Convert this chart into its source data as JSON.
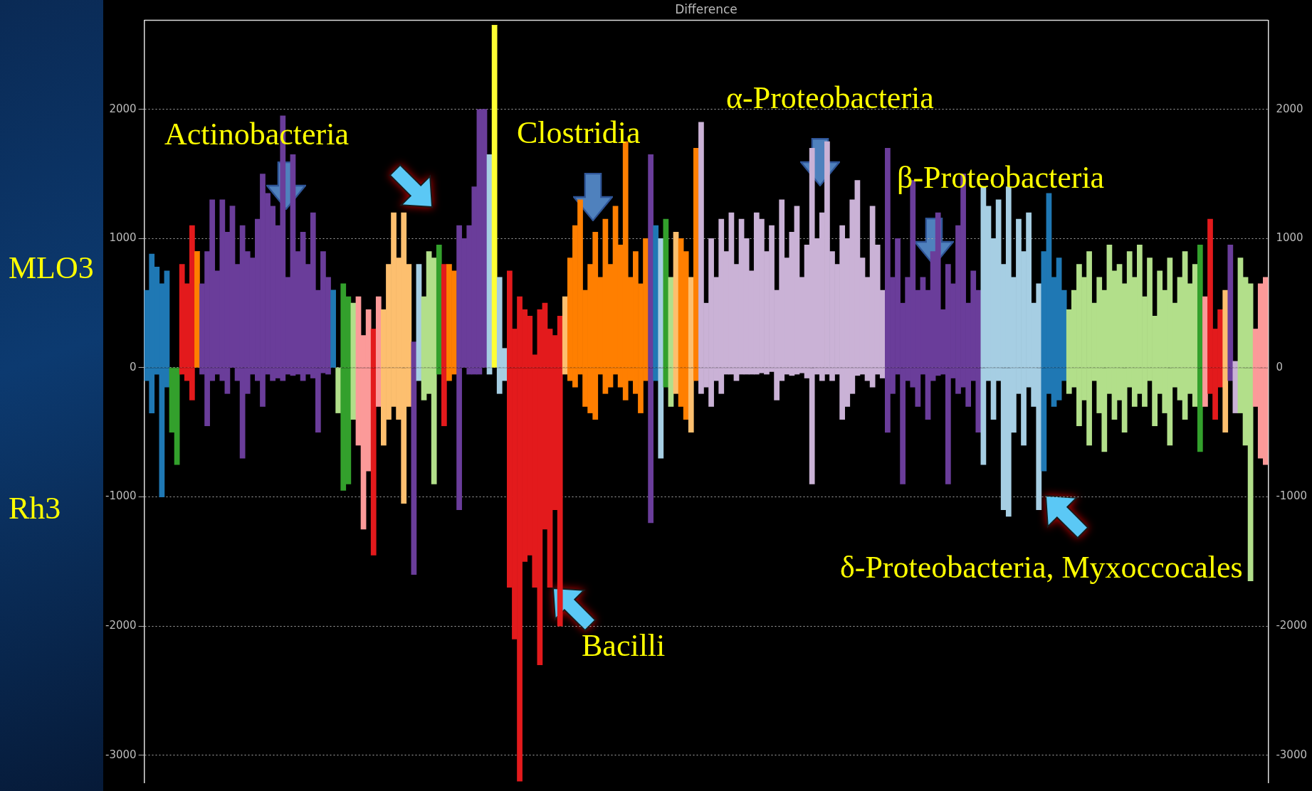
{
  "chart_data": {
    "type": "bar",
    "title": "Difference",
    "stacked": true,
    "grid": "y",
    "legend": false,
    "tick_labels": "y",
    "categories": [
      null,
      null,
      null,
      null,
      null,
      null,
      null,
      null,
      null,
      null,
      null,
      null,
      null,
      null,
      null,
      null,
      null,
      null,
      null,
      null,
      null,
      null,
      null,
      null,
      null,
      null,
      null,
      null,
      null,
      null,
      null,
      null,
      null,
      null,
      null,
      null,
      null,
      null,
      null,
      null,
      null,
      null,
      null,
      null,
      null,
      null,
      null,
      null,
      null,
      null,
      null,
      null,
      null,
      null,
      null,
      null,
      null,
      null,
      null,
      null,
      null,
      null,
      null,
      null,
      null,
      null,
      null,
      null,
      null,
      null,
      null,
      null,
      null,
      null,
      null,
      null,
      null,
      null,
      null,
      null,
      null,
      null,
      null,
      null,
      null,
      null,
      null,
      null,
      null,
      null,
      null,
      null,
      null,
      null,
      null,
      null,
      null,
      null,
      null,
      null,
      null,
      null,
      null,
      null,
      null,
      null,
      null,
      null,
      null,
      null,
      null,
      null,
      null,
      null,
      null,
      null,
      null,
      null,
      null,
      null,
      null,
      null,
      null,
      null,
      null,
      null,
      null,
      null,
      null,
      null,
      null,
      null,
      null,
      null,
      null,
      null,
      null,
      null,
      null,
      null,
      null,
      null,
      null,
      null,
      null,
      null,
      null,
      null,
      null,
      null,
      null,
      null,
      null,
      null,
      null,
      null,
      null,
      null,
      null,
      null,
      null,
      null,
      null,
      null,
      null,
      null,
      null,
      null,
      null,
      null,
      null,
      null,
      null,
      null,
      null,
      null,
      null,
      null,
      null,
      null,
      null,
      null,
      null,
      null,
      null,
      null,
      null,
      null,
      null,
      null,
      null,
      null,
      null,
      null,
      null,
      null,
      null,
      null,
      null,
      null,
      null,
      null,
      null,
      null,
      null,
      null,
      null,
      null,
      null,
      null,
      null,
      null,
      null,
      null,
      null,
      null,
      null,
      null,
      null,
      null,
      null,
      null,
      null
    ],
    "ylim": [
      -3210,
      2690
    ],
    "yticks": [
      -3000,
      -2000,
      -1000,
      0,
      1000,
      2000
    ],
    "y2lim": [
      -3210,
      2690
    ],
    "y2ticks": [
      -3000,
      -2000,
      -1000,
      0,
      1000,
      2000
    ],
    "annotations": [
      "MLO3",
      "Rh3",
      "Actinobacteria",
      "Clostridia",
      "α-Proteobacteria",
      "β-Proteobacteria",
      "δ-Proteobacteria, Myxoccocales",
      "Bacilli"
    ],
    "series": [
      {
        "values": [
          600,
          880,
          780,
          650,
          750,
          0,
          0,
          800,
          650,
          1100,
          900,
          650,
          900,
          1300,
          750,
          1300,
          1050,
          1250,
          800,
          1100,
          900,
          850,
          1150,
          1500,
          1350,
          1250,
          1100,
          1950,
          700,
          1650,
          900,
          1050,
          800,
          1200,
          600,
          900,
          700,
          600,
          0,
          650,
          550,
          500,
          550,
          250,
          450,
          300,
          550,
          450,
          800,
          1200,
          850,
          1200,
          800,
          200,
          800,
          550,
          900,
          850,
          950,
          800,
          800,
          750,
          1100,
          1000,
          1100,
          1400,
          2000,
          2000,
          1650,
          2650,
          700,
          150,
          750,
          300,
          550,
          450,
          400,
          100,
          450,
          500,
          300,
          250,
          400,
          550,
          850,
          1100,
          1300,
          600,
          800,
          1050,
          700,
          1150,
          800,
          1250,
          950,
          1750,
          700,
          900,
          650,
          1000,
          1650,
          1100,
          1000,
          1150,
          700,
          1050,
          1000,
          900,
          700,
          1700,
          1900,
          500,
          1000,
          700,
          1150,
          900,
          1200,
          800,
          1150,
          1000,
          750,
          1200,
          1150,
          900,
          1100,
          600,
          1300,
          850,
          1050,
          1250,
          700,
          950,
          1700,
          1000,
          1200,
          1750,
          900,
          800,
          1100,
          1000,
          1300,
          1450,
          850,
          700,
          1250,
          950,
          600,
          1700,
          700,
          1000,
          500,
          700,
          1450,
          600,
          700,
          600,
          900,
          1200,
          450,
          800,
          650,
          1100,
          1500,
          500,
          750,
          600,
          1400,
          1250,
          1000,
          1300,
          800,
          1400,
          700,
          1150,
          900,
          1200,
          500,
          650,
          900,
          1350,
          700,
          850,
          600,
          450,
          600,
          800,
          700,
          900,
          500,
          700,
          600,
          950,
          750,
          800,
          650,
          900,
          700,
          950,
          550,
          850,
          400,
          750,
          600,
          850,
          500,
          700,
          900,
          650,
          800,
          950,
          550,
          1150,
          300,
          450,
          600,
          950,
          50,
          850,
          700,
          650,
          300,
          650,
          700
        ],
        "colors": [
          "#1f78b4",
          "#1f78b4",
          "#1f78b4",
          "#1f78b4",
          "#1f78b4",
          "#33a02c",
          "#33a02c",
          "#e31a1c",
          "#e31a1c",
          "#e31a1c",
          "#ff7f00",
          "#6a3d9a",
          "#6a3d9a",
          "#6a3d9a",
          "#6a3d9a",
          "#6a3d9a",
          "#6a3d9a",
          "#6a3d9a",
          "#6a3d9a",
          "#6a3d9a",
          "#6a3d9a",
          "#6a3d9a",
          "#6a3d9a",
          "#6a3d9a",
          "#6a3d9a",
          "#6a3d9a",
          "#6a3d9a",
          "#6a3d9a",
          "#6a3d9a",
          "#6a3d9a",
          "#6a3d9a",
          "#6a3d9a",
          "#6a3d9a",
          "#6a3d9a",
          "#6a3d9a",
          "#6a3d9a",
          "#6a3d9a",
          "#1f78b4",
          "#b2df8a",
          "#33a02c",
          "#33a02c",
          "#b2df8a",
          "#fb9a99",
          "#fb9a99",
          "#fb9a99",
          "#e31a1c",
          "#fb9a99",
          "#fdbf6f",
          "#fdbf6f",
          "#fdbf6f",
          "#fdbf6f",
          "#fdbf6f",
          "#fdbf6f",
          "#6a3d9a",
          "#a6cee3",
          "#b2df8a",
          "#b2df8a",
          "#b2df8a",
          "#33a02c",
          "#e31a1c",
          "#ff7f00",
          "#ff7f00",
          "#6a3d9a",
          "#6a3d9a",
          "#6a3d9a",
          "#6a3d9a",
          "#6a3d9a",
          "#6a3d9a",
          "#a6cee3",
          "#ffff33",
          "#a6cee3",
          "#a6cee3",
          "#e31a1c",
          "#e31a1c",
          "#e31a1c",
          "#e31a1c",
          "#e31a1c",
          "#e31a1c",
          "#e31a1c",
          "#e31a1c",
          "#e31a1c",
          "#e31a1c",
          "#e31a1c",
          "#fdbf6f",
          "#ff7f00",
          "#ff7f00",
          "#ff7f00",
          "#ff7f00",
          "#ff7f00",
          "#ff7f00",
          "#ff7f00",
          "#ff7f00",
          "#ff7f00",
          "#ff7f00",
          "#ff7f00",
          "#ff7f00",
          "#ff7f00",
          "#ff7f00",
          "#ff7f00",
          "#ff7f00",
          "#6a3d9a",
          "#1f78b4",
          "#a6cee3",
          "#33a02c",
          "#b2df8a",
          "#fdbf6f",
          "#ff7f00",
          "#ff7f00",
          "#fdbf6f",
          "#ff7f00",
          "#cab2d6",
          "#cab2d6",
          "#cab2d6",
          "#cab2d6",
          "#cab2d6",
          "#cab2d6",
          "#cab2d6",
          "#cab2d6",
          "#cab2d6",
          "#cab2d6",
          "#cab2d6",
          "#cab2d6",
          "#cab2d6",
          "#cab2d6",
          "#cab2d6",
          "#cab2d6",
          "#cab2d6",
          "#cab2d6",
          "#cab2d6",
          "#cab2d6",
          "#cab2d6",
          "#cab2d6",
          "#cab2d6",
          "#cab2d6",
          "#cab2d6",
          "#cab2d6",
          "#cab2d6",
          "#cab2d6",
          "#cab2d6",
          "#cab2d6",
          "#cab2d6",
          "#cab2d6",
          "#cab2d6",
          "#cab2d6",
          "#cab2d6",
          "#cab2d6",
          "#cab2d6",
          "#6a3d9a",
          "#6a3d9a",
          "#6a3d9a",
          "#6a3d9a",
          "#6a3d9a",
          "#6a3d9a",
          "#6a3d9a",
          "#6a3d9a",
          "#6a3d9a",
          "#6a3d9a",
          "#6a3d9a",
          "#6a3d9a",
          "#6a3d9a",
          "#6a3d9a",
          "#6a3d9a",
          "#6a3d9a",
          "#6a3d9a",
          "#6a3d9a",
          "#6a3d9a",
          "#a6cee3",
          "#a6cee3",
          "#a6cee3",
          "#a6cee3",
          "#a6cee3",
          "#a6cee3",
          "#a6cee3",
          "#a6cee3",
          "#a6cee3",
          "#a6cee3",
          "#a6cee3",
          "#a6cee3",
          "#1f78b4",
          "#1f78b4",
          "#1f78b4",
          "#1f78b4",
          "#1f78b4",
          "#b2df8a",
          "#b2df8a",
          "#b2df8a",
          "#b2df8a",
          "#b2df8a",
          "#b2df8a",
          "#b2df8a",
          "#b2df8a",
          "#b2df8a",
          "#b2df8a",
          "#b2df8a",
          "#b2df8a",
          "#b2df8a",
          "#b2df8a",
          "#b2df8a",
          "#b2df8a",
          "#b2df8a",
          "#b2df8a",
          "#b2df8a",
          "#b2df8a",
          "#b2df8a",
          "#b2df8a",
          "#b2df8a",
          "#b2df8a",
          "#b2df8a",
          "#b2df8a",
          "#33a02c",
          "#fb9a99",
          "#e31a1c",
          "#e31a1c",
          "#e31a1c",
          "#fdbf6f",
          "#6a3d9a",
          "#cab2d6",
          "#b2df8a",
          "#b2df8a",
          "#b2df8a",
          "#fb9a99",
          "#fb9a99",
          "#fb9a99"
        ]
      },
      {
        "values": [
          -100,
          -350,
          -50,
          -1000,
          -150,
          -500,
          -750,
          -50,
          -100,
          -250,
          0,
          -50,
          -450,
          -100,
          -50,
          -100,
          -200,
          0,
          -100,
          -700,
          -200,
          -50,
          -100,
          -300,
          -50,
          -100,
          -80,
          -100,
          -50,
          -60,
          -50,
          -100,
          -50,
          -80,
          -500,
          -40,
          -50,
          0,
          -350,
          -950,
          -900,
          -400,
          -600,
          -1250,
          -800,
          -1450,
          -300,
          -600,
          -400,
          -300,
          -400,
          -1050,
          -300,
          -1600,
          -100,
          -250,
          -200,
          -900,
          -50,
          -450,
          -100,
          -50,
          -1100,
          0,
          -50,
          -50,
          -50,
          0,
          -50,
          0,
          -200,
          -100,
          -1700,
          -2100,
          -3200,
          -1500,
          -1450,
          -1700,
          -2300,
          -1250,
          -1700,
          -1100,
          -2000,
          -50,
          -100,
          -150,
          -50,
          -300,
          -350,
          -400,
          -50,
          -200,
          -150,
          -50,
          -150,
          -250,
          -100,
          -200,
          -350,
          -100,
          -1200,
          -100,
          -700,
          -150,
          -300,
          -200,
          -300,
          -400,
          -500,
          -100,
          -200,
          -150,
          -300,
          -100,
          -200,
          -50,
          -50,
          -100,
          -50,
          -50,
          -50,
          -50,
          -40,
          -50,
          -30,
          -250,
          -100,
          -50,
          -60,
          -50,
          -40,
          -80,
          -900,
          -50,
          -100,
          -50,
          -100,
          -50,
          -400,
          -300,
          -200,
          -60,
          -50,
          -100,
          -150,
          -50,
          -80,
          -500,
          -200,
          -50,
          -900,
          -100,
          -150,
          -300,
          -50,
          -400,
          -100,
          -60,
          -50,
          -900,
          -80,
          -200,
          -150,
          -300,
          -100,
          -500,
          -750,
          -100,
          -400,
          -100,
          -1100,
          -1150,
          -500,
          -200,
          -600,
          -150,
          -300,
          -1100,
          -800,
          -200,
          -300,
          -250,
          -100,
          -200,
          -150,
          -450,
          -250,
          -600,
          -100,
          -350,
          -650,
          -200,
          -400,
          -250,
          -500,
          -150,
          -300,
          -200,
          -300,
          -100,
          -450,
          -200,
          -350,
          -600,
          -150,
          -250,
          -400,
          -200,
          -300,
          -650,
          -300,
          -200,
          -400,
          -150,
          -500,
          -100,
          -350,
          -350,
          -600,
          -1650,
          -300,
          -700,
          -750
        ],
        "colors": [
          "#1f78b4",
          "#1f78b4",
          "#1f78b4",
          "#1f78b4",
          "#1f78b4",
          "#33a02c",
          "#33a02c",
          "#e31a1c",
          "#e31a1c",
          "#e31a1c",
          "#ff7f00",
          "#6a3d9a",
          "#6a3d9a",
          "#6a3d9a",
          "#6a3d9a",
          "#6a3d9a",
          "#6a3d9a",
          "#6a3d9a",
          "#6a3d9a",
          "#6a3d9a",
          "#6a3d9a",
          "#6a3d9a",
          "#6a3d9a",
          "#6a3d9a",
          "#6a3d9a",
          "#6a3d9a",
          "#6a3d9a",
          "#6a3d9a",
          "#6a3d9a",
          "#6a3d9a",
          "#6a3d9a",
          "#6a3d9a",
          "#6a3d9a",
          "#6a3d9a",
          "#6a3d9a",
          "#6a3d9a",
          "#6a3d9a",
          "#1f78b4",
          "#b2df8a",
          "#33a02c",
          "#33a02c",
          "#b2df8a",
          "#fb9a99",
          "#fb9a99",
          "#fb9a99",
          "#e31a1c",
          "#fb9a99",
          "#fdbf6f",
          "#fdbf6f",
          "#fdbf6f",
          "#fdbf6f",
          "#fdbf6f",
          "#fdbf6f",
          "#6a3d9a",
          "#a6cee3",
          "#b2df8a",
          "#b2df8a",
          "#b2df8a",
          "#33a02c",
          "#e31a1c",
          "#ff7f00",
          "#ff7f00",
          "#6a3d9a",
          "#6a3d9a",
          "#6a3d9a",
          "#6a3d9a",
          "#6a3d9a",
          "#6a3d9a",
          "#a6cee3",
          "#ffff33",
          "#a6cee3",
          "#a6cee3",
          "#e31a1c",
          "#e31a1c",
          "#e31a1c",
          "#e31a1c",
          "#e31a1c",
          "#e31a1c",
          "#e31a1c",
          "#e31a1c",
          "#e31a1c",
          "#e31a1c",
          "#e31a1c",
          "#fdbf6f",
          "#ff7f00",
          "#ff7f00",
          "#ff7f00",
          "#ff7f00",
          "#ff7f00",
          "#ff7f00",
          "#ff7f00",
          "#ff7f00",
          "#ff7f00",
          "#ff7f00",
          "#ff7f00",
          "#ff7f00",
          "#ff7f00",
          "#ff7f00",
          "#ff7f00",
          "#ff7f00",
          "#6a3d9a",
          "#1f78b4",
          "#a6cee3",
          "#33a02c",
          "#b2df8a",
          "#fdbf6f",
          "#ff7f00",
          "#ff7f00",
          "#fdbf6f",
          "#ff7f00",
          "#cab2d6",
          "#cab2d6",
          "#cab2d6",
          "#cab2d6",
          "#cab2d6",
          "#cab2d6",
          "#cab2d6",
          "#cab2d6",
          "#cab2d6",
          "#cab2d6",
          "#cab2d6",
          "#cab2d6",
          "#cab2d6",
          "#cab2d6",
          "#cab2d6",
          "#cab2d6",
          "#cab2d6",
          "#cab2d6",
          "#cab2d6",
          "#cab2d6",
          "#cab2d6",
          "#cab2d6",
          "#cab2d6",
          "#cab2d6",
          "#cab2d6",
          "#cab2d6",
          "#cab2d6",
          "#cab2d6",
          "#cab2d6",
          "#cab2d6",
          "#cab2d6",
          "#cab2d6",
          "#cab2d6",
          "#cab2d6",
          "#cab2d6",
          "#cab2d6",
          "#cab2d6",
          "#6a3d9a",
          "#6a3d9a",
          "#6a3d9a",
          "#6a3d9a",
          "#6a3d9a",
          "#6a3d9a",
          "#6a3d9a",
          "#6a3d9a",
          "#6a3d9a",
          "#6a3d9a",
          "#6a3d9a",
          "#6a3d9a",
          "#6a3d9a",
          "#6a3d9a",
          "#6a3d9a",
          "#6a3d9a",
          "#6a3d9a",
          "#6a3d9a",
          "#6a3d9a",
          "#a6cee3",
          "#a6cee3",
          "#a6cee3",
          "#a6cee3",
          "#a6cee3",
          "#a6cee3",
          "#a6cee3",
          "#a6cee3",
          "#a6cee3",
          "#a6cee3",
          "#a6cee3",
          "#a6cee3",
          "#1f78b4",
          "#1f78b4",
          "#1f78b4",
          "#1f78b4",
          "#1f78b4",
          "#b2df8a",
          "#b2df8a",
          "#b2df8a",
          "#b2df8a",
          "#b2df8a",
          "#b2df8a",
          "#b2df8a",
          "#b2df8a",
          "#b2df8a",
          "#b2df8a",
          "#b2df8a",
          "#b2df8a",
          "#b2df8a",
          "#b2df8a",
          "#b2df8a",
          "#b2df8a",
          "#b2df8a",
          "#b2df8a",
          "#b2df8a",
          "#b2df8a",
          "#b2df8a",
          "#b2df8a",
          "#b2df8a",
          "#b2df8a",
          "#b2df8a",
          "#b2df8a",
          "#33a02c",
          "#fb9a99",
          "#e31a1c",
          "#e31a1c",
          "#e31a1c",
          "#fdbf6f",
          "#6a3d9a",
          "#cab2d6",
          "#b2df8a",
          "#b2df8a",
          "#b2df8a",
          "#fb9a99",
          "#fb9a99",
          "#fb9a99"
        ]
      }
    ]
  }
}
